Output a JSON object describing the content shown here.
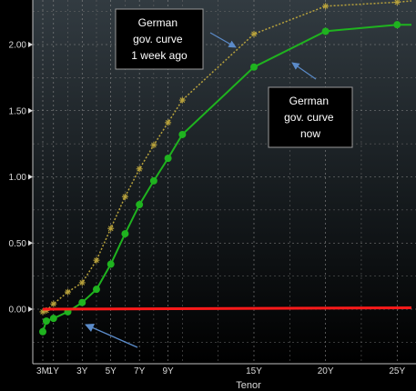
{
  "chart_data": {
    "type": "line",
    "xlabel": "Tenor",
    "ylabel": "",
    "ylim": [
      -0.25,
      2.3
    ],
    "xlim": [
      0.25,
      26
    ],
    "grid": true,
    "x_ticks": [
      {
        "value": 0.25,
        "label": "3M"
      },
      {
        "value": 1,
        "label": "1Y"
      },
      {
        "value": 3,
        "label": "3Y"
      },
      {
        "value": 5,
        "label": "5Y"
      },
      {
        "value": 7,
        "label": "7Y"
      },
      {
        "value": 9,
        "label": "9Y"
      },
      {
        "value": 15,
        "label": "15Y"
      },
      {
        "value": 20,
        "label": "20Y"
      },
      {
        "value": 25,
        "label": "25Y"
      }
    ],
    "y_ticks": [
      {
        "value": 0,
        "label": "0.00"
      },
      {
        "value": 0.5,
        "label": "0.50"
      },
      {
        "value": 1,
        "label": "1.00"
      },
      {
        "value": 1.5,
        "label": "1.50"
      },
      {
        "value": 2,
        "label": "2.00"
      }
    ],
    "series": [
      {
        "key": "now",
        "color": "#1fb31f",
        "style": "solid-dot",
        "x": [
          0.25,
          0.5,
          1,
          2,
          3,
          4,
          5,
          6,
          7,
          8,
          9,
          10,
          15,
          20,
          25,
          26
        ],
        "y": [
          -0.17,
          -0.09,
          -0.07,
          -0.02,
          0.05,
          0.15,
          0.34,
          0.57,
          0.79,
          0.97,
          1.14,
          1.32,
          1.83,
          2.1,
          2.15,
          2.15
        ]
      },
      {
        "key": "week_ago",
        "color": "#b8a23c",
        "style": "dotted-star",
        "x": [
          0.25,
          0.5,
          1,
          2,
          3,
          4,
          5,
          6,
          7,
          8,
          9,
          10,
          15,
          20,
          25,
          26
        ],
        "y": [
          -0.02,
          -0.01,
          0.04,
          0.13,
          0.2,
          0.37,
          0.61,
          0.85,
          1.06,
          1.24,
          1.41,
          1.58,
          2.08,
          2.29,
          2.32,
          2.33
        ]
      },
      {
        "key": "zero_line",
        "color": "#ff1a1a",
        "style": "thick",
        "x": [
          0.25,
          26
        ],
        "y": [
          0,
          0.01
        ]
      }
    ],
    "annotations": [
      {
        "key": "week_ago",
        "lines": [
          "German",
          "gov. curve",
          "1 week ago"
        ]
      },
      {
        "key": "now",
        "lines": [
          "German",
          "gov. curve",
          "now"
        ]
      }
    ]
  }
}
